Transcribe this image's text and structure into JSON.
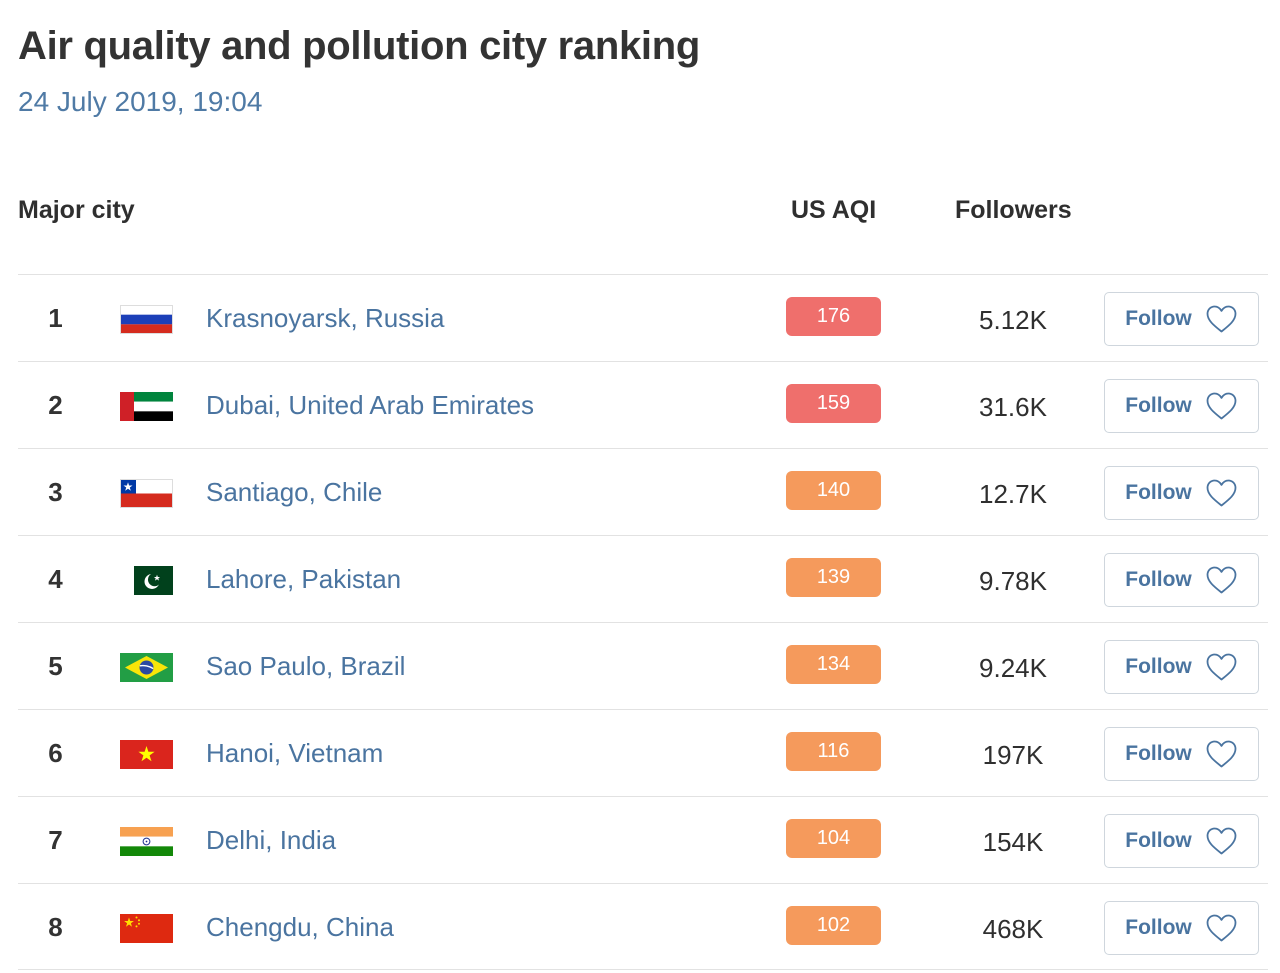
{
  "header": {
    "title": "Air quality and pollution city ranking",
    "date": "24 July 2019, 19:04"
  },
  "table": {
    "columns": {
      "city": "Major city",
      "aqi": "US AQI",
      "followers": "Followers"
    },
    "follow_label": "Follow",
    "rows": [
      {
        "rank": "1",
        "city": "Krasnoyarsk, Russia",
        "flag": "russia-flag-icon",
        "aqi": "176",
        "aqi_color": "#ef6f6c",
        "followers": "5.12K"
      },
      {
        "rank": "2",
        "city": "Dubai, United Arab Emirates",
        "flag": "uae-flag-icon",
        "aqi": "159",
        "aqi_color": "#ef6f6c",
        "followers": "31.6K"
      },
      {
        "rank": "3",
        "city": "Santiago, Chile",
        "flag": "chile-flag-icon",
        "aqi": "140",
        "aqi_color": "#f59a5c",
        "followers": "12.7K"
      },
      {
        "rank": "4",
        "city": "Lahore, Pakistan",
        "flag": "pakistan-flag-icon",
        "aqi": "139",
        "aqi_color": "#f59a5c",
        "followers": "9.78K"
      },
      {
        "rank": "5",
        "city": "Sao Paulo, Brazil",
        "flag": "brazil-flag-icon",
        "aqi": "134",
        "aqi_color": "#f59a5c",
        "followers": "9.24K"
      },
      {
        "rank": "6",
        "city": "Hanoi, Vietnam",
        "flag": "vietnam-flag-icon",
        "aqi": "116",
        "aqi_color": "#f59a5c",
        "followers": "197K"
      },
      {
        "rank": "7",
        "city": "Delhi, India",
        "flag": "india-flag-icon",
        "aqi": "104",
        "aqi_color": "#f59a5c",
        "followers": "154K"
      },
      {
        "rank": "8",
        "city": "Chengdu, China",
        "flag": "china-flag-icon",
        "aqi": "102",
        "aqi_color": "#f59a5c",
        "followers": "468K"
      }
    ]
  }
}
